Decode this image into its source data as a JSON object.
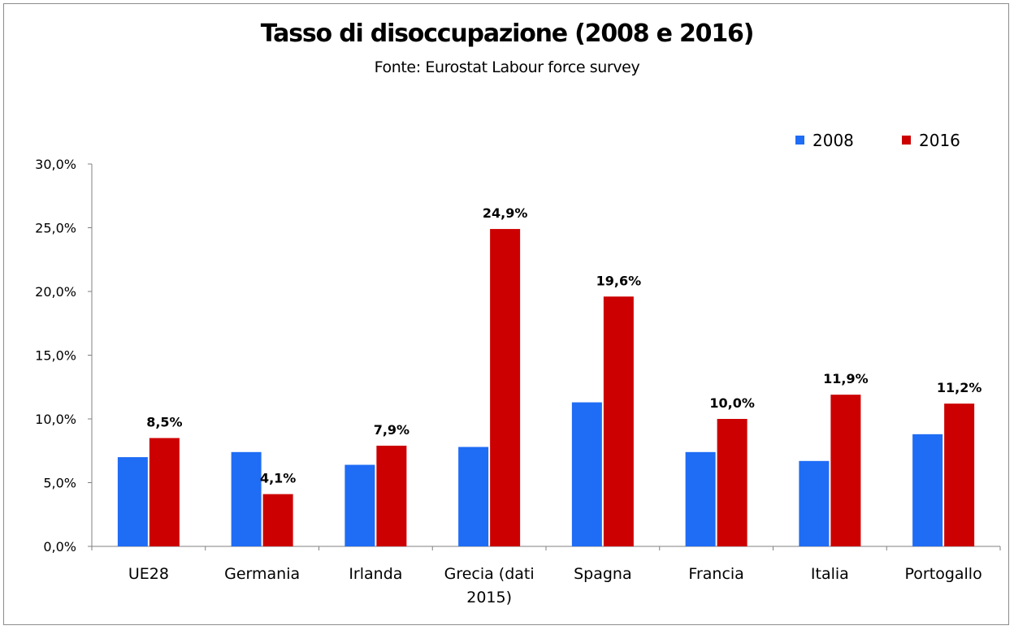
{
  "chart_data": {
    "type": "bar",
    "title": "Tasso di disoccupazione (2008 e 2016)",
    "subtitle": "Fonte: Eurostat Labour force survey",
    "categories": [
      "UE28",
      "Germania",
      "Irlanda",
      "Grecia (dati 2015)",
      "Spagna",
      "Francia",
      "Italia",
      "Portogallo"
    ],
    "category_lines": [
      [
        "UE28"
      ],
      [
        "Germania"
      ],
      [
        "Irlanda"
      ],
      [
        "Grecia (dati",
        "2015)"
      ],
      [
        "Spagna"
      ],
      [
        "Francia"
      ],
      [
        "Italia"
      ],
      [
        "Portogallo"
      ]
    ],
    "series": [
      {
        "name": "2008",
        "color": "#1f6cf5",
        "values": [
          7.0,
          7.4,
          6.4,
          7.8,
          11.3,
          7.4,
          6.7,
          8.8
        ]
      },
      {
        "name": "2016",
        "color": "#cc0000",
        "values": [
          8.5,
          4.1,
          7.9,
          24.9,
          19.6,
          10.0,
          11.9,
          11.2
        ]
      }
    ],
    "data_labels": {
      "2016": [
        "8,5%",
        "4,1%",
        "7,9%",
        "24,9%",
        "19,6%",
        "10,0%",
        "11,9%",
        "11,2%"
      ]
    },
    "ylim": [
      0,
      30
    ],
    "yticks": [
      0,
      5,
      10,
      15,
      20,
      25,
      30
    ],
    "ytick_labels": [
      "0,0%",
      "5,0%",
      "10,0%",
      "15,0%",
      "20,0%",
      "25,0%",
      "30,0%"
    ],
    "xlabel": "",
    "ylabel": "",
    "legend_position": "top-right",
    "grid": false
  }
}
